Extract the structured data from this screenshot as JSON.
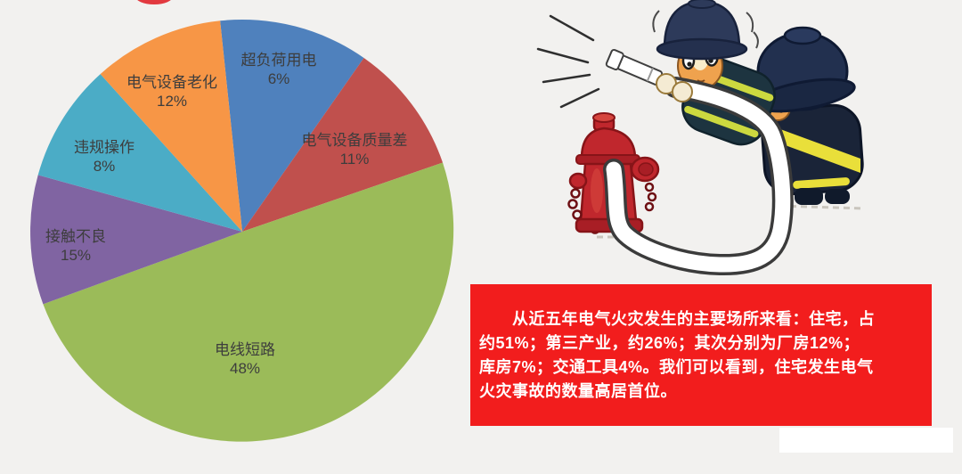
{
  "page": {
    "background": "#f2f1ef"
  },
  "decor": {
    "top_logo": {
      "name": "clipped-red-circle-logo",
      "color": "#e2393f"
    },
    "watermark_strip": {
      "color": "#ffffff"
    }
  },
  "chart_data": {
    "type": "pie",
    "title": "",
    "unit": "%",
    "legend": "none (labels inside slices)",
    "center": [
      272,
      260
    ],
    "radius": 238,
    "label_color": "#3d3d3d",
    "slices": [
      {
        "label": "超负荷用电",
        "value": 6,
        "color": "#4F81BD",
        "start_angle": -6,
        "end_angle": 35,
        "label_pos": [
          313,
          73
        ]
      },
      {
        "label": "电气设备质量差",
        "value": 11,
        "color": "#C0504D",
        "start_angle": 35,
        "end_angle": 71,
        "label_pos": [
          398,
          163
        ]
      },
      {
        "label": "电线短路",
        "value": 48,
        "color": "#9BBB59",
        "start_angle": 71,
        "end_angle": 250,
        "label_pos": [
          275,
          398
        ]
      },
      {
        "label": "接触不良",
        "value": 15,
        "color": "#8064A2",
        "start_angle": 250,
        "end_angle": 285.5,
        "label_pos": [
          85,
          271
        ]
      },
      {
        "label": "违规操作",
        "value": 8,
        "color": "#4BACC6",
        "start_angle": 285.5,
        "end_angle": 318,
        "label_pos": [
          117,
          171
        ]
      },
      {
        "label": "电气设备老化",
        "value": 12,
        "color": "#F79646",
        "start_angle": 318,
        "end_angle": 354,
        "label_pos": [
          193,
          98
        ]
      }
    ]
  },
  "info_box": {
    "background": "#f21d1d",
    "text_color": "#ffffff",
    "text": "　　从近五年电气火灾发生的主要场所来看：住宅，占\n约51%；第三产业，约26%；其次分别为厂房12%；\n库房7%；交通工具4%。我们可以看到，住宅发生电气\n火灾事故的数量高居首位。"
  },
  "illustration": {
    "name": "two-cartoon-firefighters-with-hose-and-hydrant",
    "palette": {
      "hydrant_red": "#c0272d",
      "hydrant_dark": "#a81e25",
      "helmet_navy": "#2d3a5a",
      "jacket_dark": "#1d3440",
      "jacket_back_dark": "#1a2438",
      "stripe_yellow": "#e9df3a",
      "stripe_yellow_green": "#ccd93f",
      "skin_tan": "#efa24e",
      "glove_cream": "#f4ebd3",
      "hose_white": "#ffffff",
      "outline_dark": "#3b3b3b"
    }
  }
}
